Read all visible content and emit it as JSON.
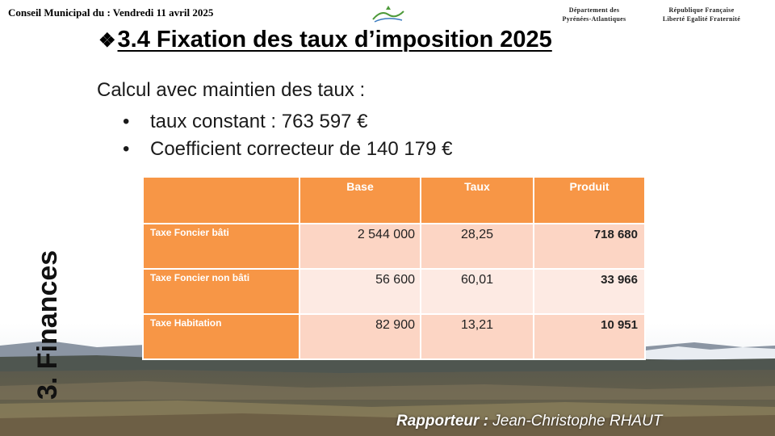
{
  "header": {
    "left": "Conseil Municipal du : Vendredi 11 avril 2025",
    "department": [
      "Département des",
      "Pyrénées-Atlantiques"
    ],
    "republic": [
      "République Française",
      "Liberté Egalité Fraternité"
    ]
  },
  "title": {
    "bullet": "❖",
    "text": "3.4 Fixation des taux d’imposition 2025"
  },
  "intro": "Calcul avec maintien des taux :",
  "bullets": [
    "taux constant : 763 597 €",
    "Coefficient correcteur de 140 179 €"
  ],
  "table": {
    "headers": [
      "",
      "Base",
      "Taux",
      "Produit"
    ],
    "rows": [
      {
        "label": "Taxe Foncier bâti",
        "base": "2 544 000",
        "taux": "28,25",
        "produit": "718 680"
      },
      {
        "label": "Taxe Foncier non bâti",
        "base": "56 600",
        "taux": "60,01",
        "produit": "33 966"
      },
      {
        "label": "Taxe Habitation",
        "base": "82 900",
        "taux": "13,21",
        "produit": "10 951"
      }
    ]
  },
  "side_label": "3. Finances",
  "rapporteur": {
    "label": "Rapporteur :",
    "name": "Jean-Christophe RHAUT"
  },
  "colors": {
    "header_orange": "#f79646",
    "row_light": "#fdeae3",
    "row_medium": "#fcd5c4"
  }
}
